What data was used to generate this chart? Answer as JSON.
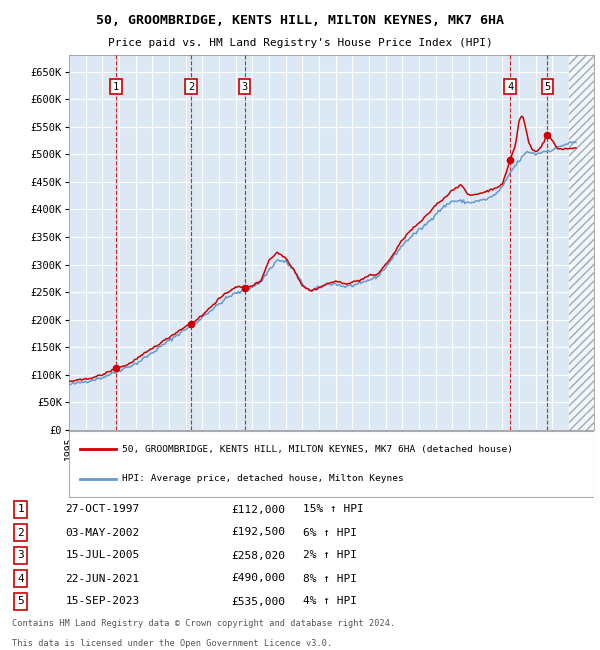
{
  "title1": "50, GROOMBRIDGE, KENTS HILL, MILTON KEYNES, MK7 6HA",
  "title2": "Price paid vs. HM Land Registry's House Price Index (HPI)",
  "legend_label_red": "50, GROOMBRIDGE, KENTS HILL, MILTON KEYNES, MK7 6HA (detached house)",
  "legend_label_blue": "HPI: Average price, detached house, Milton Keynes",
  "footer1": "Contains HM Land Registry data © Crown copyright and database right 2024.",
  "footer2": "This data is licensed under the Open Government Licence v3.0.",
  "sales": [
    {
      "num": 1,
      "date": "27-OCT-1997",
      "price": 112000,
      "pct": "15%",
      "year": 1997.82
    },
    {
      "num": 2,
      "date": "03-MAY-2002",
      "price": 192500,
      "pct": "6%",
      "year": 2002.33
    },
    {
      "num": 3,
      "date": "15-JUL-2005",
      "price": 258020,
      "pct": "2%",
      "year": 2005.54
    },
    {
      "num": 4,
      "date": "22-JUN-2021",
      "price": 490000,
      "pct": "8%",
      "year": 2021.47
    },
    {
      "num": 5,
      "date": "15-SEP-2023",
      "price": 535000,
      "pct": "4%",
      "year": 2023.71
    }
  ],
  "xlim": [
    1995.0,
    2026.5
  ],
  "ylim": [
    0,
    680000
  ],
  "yticks": [
    0,
    50000,
    100000,
    150000,
    200000,
    250000,
    300000,
    350000,
    400000,
    450000,
    500000,
    550000,
    600000,
    650000
  ],
  "ytick_labels": [
    "£0",
    "£50K",
    "£100K",
    "£150K",
    "£200K",
    "£250K",
    "£300K",
    "£350K",
    "£400K",
    "£450K",
    "£500K",
    "£550K",
    "£600K",
    "£650K"
  ],
  "background_color": "#dce9f5",
  "hatch_color": "#b0b8c8",
  "red_color": "#cc0000",
  "blue_color": "#6699cc",
  "grid_color": "#ffffff",
  "hatch_start": 2025.0
}
